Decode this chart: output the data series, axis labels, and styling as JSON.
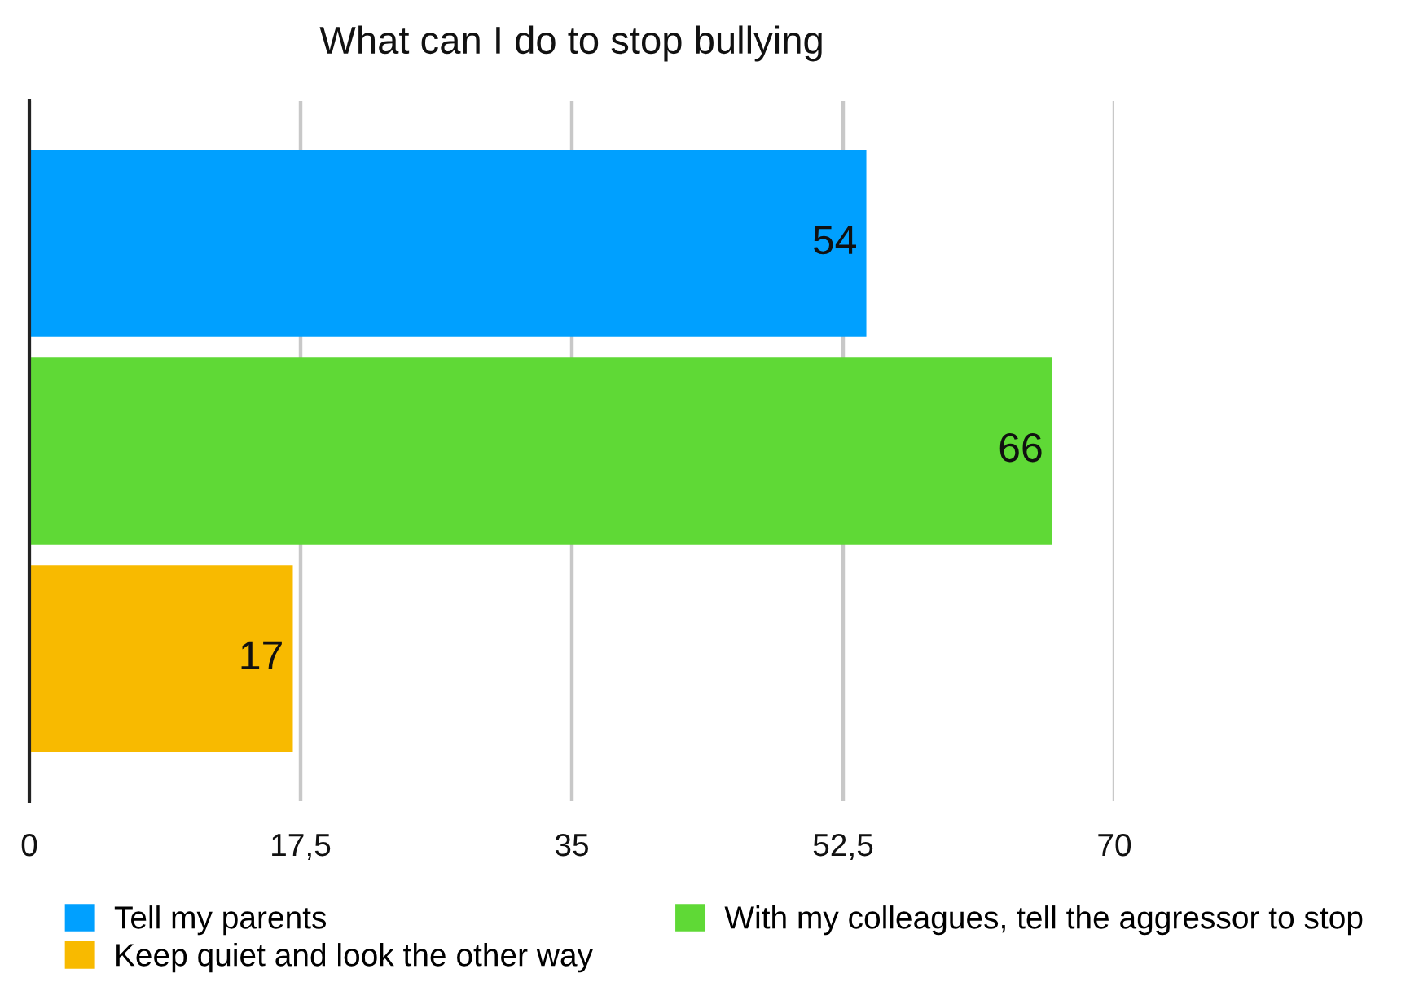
{
  "chart_data": {
    "type": "bar",
    "orientation": "horizontal",
    "title": "What can I do to stop bullying",
    "categories": [
      null
    ],
    "series": [
      {
        "name": "Tell my parents",
        "color": "#00a0ff",
        "values": [
          54
        ]
      },
      {
        "name": "With my colleagues, tell the aggressor to stop",
        "color": "#5fd936",
        "values": [
          66
        ]
      },
      {
        "name": "Keep quiet and look the other way",
        "color": "#f8ba00",
        "values": [
          17
        ]
      }
    ],
    "xlim": [
      0,
      70
    ],
    "xticks": [
      0,
      {
        "value": 17.5,
        "label": "17,5"
      },
      35,
      {
        "value": 52.5,
        "label": "52,5"
      },
      70
    ],
    "grid": "x",
    "legend": "bottom",
    "data_labels": true
  }
}
